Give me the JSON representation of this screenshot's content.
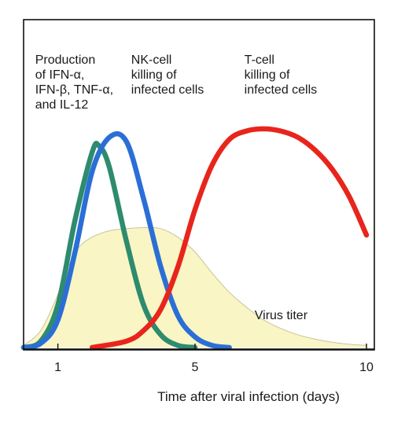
{
  "chart_data": {
    "type": "line",
    "title": "",
    "xlabel": "Time after viral infection (days)",
    "ylabel": "",
    "xlim": [
      0,
      10
    ],
    "ylim": [
      0,
      1
    ],
    "grid": false,
    "legend": "none",
    "x_ticks": [
      {
        "value": 1,
        "label": "1"
      },
      {
        "value": 5,
        "label": "5"
      },
      {
        "value": 10,
        "label": "10"
      }
    ],
    "annotations": [
      {
        "id": "cytokines",
        "lines": [
          "Production",
          "of IFN-α,",
          "IFN-β, TNF-α,",
          "and  IL-12"
        ],
        "x": 0.2,
        "y": 0.9
      },
      {
        "id": "nk",
        "lines": [
          "NK-cell",
          "killing of",
          "infected cells"
        ],
        "x": 3.0,
        "y": 0.9
      },
      {
        "id": "tcell",
        "lines": [
          "T-cell",
          "killing of",
          "infected cells"
        ],
        "x": 6.3,
        "y": 0.9
      },
      {
        "id": "virus",
        "lines": [
          "Virus  titer"
        ],
        "x": 6.6,
        "y": 0.15
      }
    ],
    "series": [
      {
        "name": "Virus titer",
        "style": "area",
        "color": "#f9f5c4",
        "line_color": "#c9c49a",
        "x": [
          0,
          0.5,
          1.0,
          1.3,
          1.6,
          2.0,
          2.5,
          3.0,
          3.5,
          4.0,
          4.5,
          5.0,
          5.5,
          6.0,
          6.5,
          7.0,
          7.5,
          8.0,
          8.5,
          9.0,
          9.5,
          10.0
        ],
        "values": [
          0.01,
          0.08,
          0.25,
          0.38,
          0.47,
          0.52,
          0.55,
          0.56,
          0.565,
          0.56,
          0.52,
          0.45,
          0.35,
          0.26,
          0.19,
          0.13,
          0.09,
          0.06,
          0.04,
          0.025,
          0.015,
          0.01
        ]
      },
      {
        "name": "Production of IFN-α, IFN-β, TNF-α, and IL-12",
        "style": "line",
        "color": "#2e8b6e",
        "x": [
          0,
          0.5,
          1.0,
          1.5,
          2.0,
          2.2,
          2.5,
          3.0,
          3.5,
          4.0,
          4.5,
          5.0
        ],
        "values": [
          0.0,
          0.03,
          0.2,
          0.6,
          0.92,
          0.95,
          0.85,
          0.5,
          0.2,
          0.06,
          0.01,
          0.0
        ]
      },
      {
        "name": "NK-cell killing of infected cells",
        "style": "line",
        "color": "#2b6fd6",
        "x": [
          0,
          0.5,
          1.0,
          1.5,
          2.0,
          2.5,
          3.0,
          3.5,
          4.0,
          4.5,
          5.0,
          5.5,
          6.0
        ],
        "values": [
          0.0,
          0.02,
          0.13,
          0.45,
          0.83,
          0.99,
          0.97,
          0.7,
          0.38,
          0.15,
          0.05,
          0.01,
          0.0
        ]
      },
      {
        "name": "T-cell killing of infected cells",
        "style": "line",
        "color": "#e8251c",
        "x": [
          2.0,
          3.0,
          3.5,
          4.0,
          4.5,
          5.0,
          5.5,
          6.0,
          6.5,
          7.0,
          7.5,
          8.0,
          8.5,
          9.0,
          9.5,
          10.0
        ],
        "values": [
          0.0,
          0.03,
          0.08,
          0.18,
          0.38,
          0.65,
          0.86,
          0.98,
          1.02,
          1.03,
          1.02,
          0.99,
          0.93,
          0.84,
          0.71,
          0.53
        ]
      }
    ]
  }
}
